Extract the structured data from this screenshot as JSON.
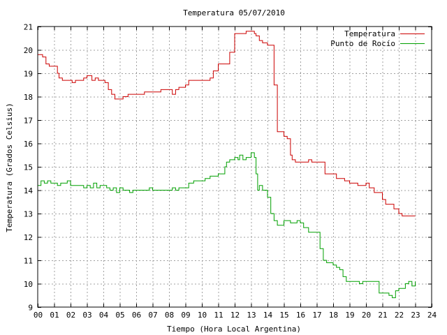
{
  "chart_data": {
    "type": "line",
    "title": "Temperatura 05/07/2010",
    "xlabel": "Tiempo (Hora Local Argentina)",
    "ylabel": "Temperatura (Grados Celsius)",
    "xlim": [
      0,
      24
    ],
    "ylim": [
      9,
      21
    ],
    "xticks": [
      "00",
      "01",
      "02",
      "03",
      "04",
      "05",
      "06",
      "07",
      "08",
      "09",
      "10",
      "11",
      "12",
      "13",
      "14",
      "15",
      "16",
      "17",
      "18",
      "19",
      "20",
      "21",
      "22",
      "23",
      "24"
    ],
    "yticks": [
      9,
      10,
      11,
      12,
      13,
      14,
      15,
      16,
      17,
      18,
      19,
      20,
      21
    ],
    "grid": true,
    "legend_position": "top-right",
    "series": [
      {
        "name": "Temperatura",
        "color": "#cc0000",
        "x": [
          0,
          0.2,
          0.3,
          0.5,
          0.7,
          1.0,
          1.2,
          1.3,
          1.5,
          1.7,
          2.0,
          2.1,
          2.3,
          2.5,
          2.8,
          3.0,
          3.1,
          3.3,
          3.5,
          3.7,
          4.0,
          4.1,
          4.3,
          4.5,
          4.7,
          5.0,
          5.2,
          5.3,
          5.5,
          5.7,
          6.0,
          6.2,
          6.5,
          6.8,
          7.0,
          7.2,
          7.5,
          7.7,
          8.0,
          8.2,
          8.4,
          8.6,
          9.0,
          9.2,
          9.5,
          9.8,
          10.0,
          10.2,
          10.5,
          10.7,
          11.0,
          11.2,
          11.5,
          11.7,
          12.0,
          12.2,
          12.5,
          12.7,
          13.0,
          13.2,
          13.3,
          13.5,
          13.7,
          14.0,
          14.2,
          14.4,
          14.6,
          15.0,
          15.2,
          15.4,
          15.5,
          15.7,
          16.0,
          16.2,
          16.5,
          16.7,
          17.0,
          17.2,
          17.5,
          17.7,
          18.0,
          18.2,
          18.5,
          18.7,
          19.0,
          19.2,
          19.5,
          19.8,
          20.0,
          20.2,
          20.5,
          20.7,
          21.0,
          21.2,
          21.5,
          21.7,
          22.0,
          22.2,
          22.5,
          22.7,
          23.0
        ],
        "y": [
          19.8,
          19.8,
          19.7,
          19.4,
          19.3,
          19.3,
          19.0,
          18.8,
          18.7,
          18.7,
          18.7,
          18.6,
          18.7,
          18.7,
          18.8,
          18.9,
          18.9,
          18.7,
          18.8,
          18.7,
          18.7,
          18.6,
          18.3,
          18.1,
          17.9,
          17.9,
          18.0,
          18.0,
          18.1,
          18.1,
          18.1,
          18.1,
          18.2,
          18.2,
          18.2,
          18.2,
          18.3,
          18.3,
          18.3,
          18.1,
          18.3,
          18.4,
          18.5,
          18.7,
          18.7,
          18.7,
          18.7,
          18.7,
          18.8,
          19.1,
          19.4,
          19.4,
          19.4,
          19.9,
          20.7,
          20.7,
          20.7,
          20.8,
          20.8,
          20.7,
          20.6,
          20.4,
          20.3,
          20.2,
          20.2,
          18.5,
          16.5,
          16.3,
          16.2,
          15.5,
          15.3,
          15.2,
          15.2,
          15.2,
          15.3,
          15.2,
          15.2,
          15.2,
          14.7,
          14.7,
          14.7,
          14.5,
          14.5,
          14.4,
          14.3,
          14.3,
          14.2,
          14.2,
          14.3,
          14.1,
          13.9,
          13.9,
          13.6,
          13.4,
          13.4,
          13.2,
          13.0,
          12.9,
          12.9,
          12.9,
          12.9
        ],
        "x_note_dummy_removed": null
      },
      {
        "name": "Punto de Rocío",
        "color": "#00a000",
        "x": [
          0,
          0.2,
          0.4,
          0.6,
          0.8,
          1.0,
          1.2,
          1.4,
          1.6,
          1.8,
          2.0,
          2.2,
          2.4,
          2.6,
          2.8,
          3.0,
          3.2,
          3.4,
          3.6,
          3.8,
          4.0,
          4.2,
          4.4,
          4.6,
          4.8,
          5.0,
          5.2,
          5.4,
          5.6,
          5.8,
          6.0,
          6.4,
          6.8,
          7.0,
          7.2,
          7.6,
          8.0,
          8.2,
          8.4,
          8.6,
          9.0,
          9.2,
          9.5,
          9.8,
          10.0,
          10.2,
          10.5,
          10.7,
          11.0,
          11.2,
          11.4,
          11.5,
          11.7,
          12.0,
          12.2,
          12.3,
          12.5,
          12.7,
          13.0,
          13.2,
          13.3,
          13.4,
          13.5,
          13.7,
          14.0,
          14.2,
          14.4,
          14.6,
          14.8,
          15.0,
          15.2,
          15.4,
          15.6,
          15.8,
          16.0,
          16.2,
          16.5,
          16.7,
          17.0,
          17.2,
          17.4,
          17.6,
          17.8,
          18.0,
          18.2,
          18.4,
          18.6,
          18.8,
          19.0,
          19.2,
          19.4,
          19.6,
          19.8,
          20.0,
          20.2,
          20.4,
          20.6,
          20.8,
          21.0,
          21.2,
          21.4,
          21.6,
          21.8,
          22.0,
          22.2,
          22.4,
          22.6,
          22.8,
          23.0
        ],
        "y": [
          14.2,
          14.4,
          14.3,
          14.4,
          14.3,
          14.3,
          14.2,
          14.3,
          14.3,
          14.4,
          14.2,
          14.2,
          14.2,
          14.2,
          14.1,
          14.2,
          14.1,
          14.3,
          14.1,
          14.2,
          14.2,
          14.1,
          14.0,
          14.1,
          13.9,
          14.1,
          14.0,
          14.0,
          13.9,
          14.0,
          14.0,
          14.0,
          14.1,
          14.0,
          14.0,
          14.0,
          14.0,
          14.1,
          14.0,
          14.1,
          14.1,
          14.3,
          14.4,
          14.4,
          14.4,
          14.5,
          14.6,
          14.6,
          14.7,
          14.7,
          15.0,
          15.2,
          15.3,
          15.4,
          15.3,
          15.5,
          15.3,
          15.4,
          15.6,
          15.4,
          14.7,
          14.0,
          14.2,
          14.0,
          13.7,
          13.0,
          12.7,
          12.5,
          12.5,
          12.7,
          12.7,
          12.6,
          12.6,
          12.7,
          12.6,
          12.4,
          12.2,
          12.2,
          12.2,
          11.5,
          11.0,
          10.9,
          10.9,
          10.8,
          10.7,
          10.6,
          10.3,
          10.1,
          10.1,
          10.1,
          10.1,
          10.0,
          10.1,
          10.1,
          10.1,
          10.1,
          10.1,
          9.6,
          9.6,
          9.6,
          9.5,
          9.4,
          9.7,
          9.8,
          9.8,
          10.0,
          10.1,
          9.9,
          10.1
        ]
      }
    ]
  }
}
